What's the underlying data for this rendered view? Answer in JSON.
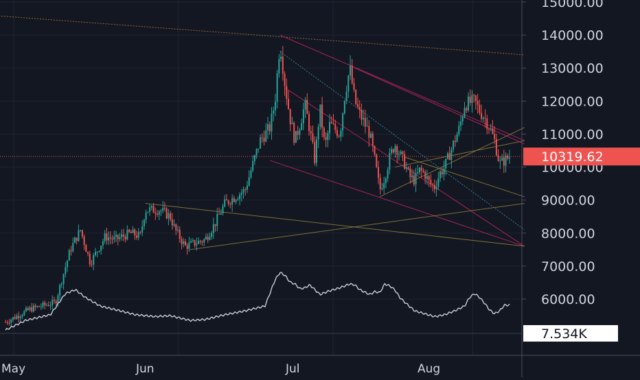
{
  "colors": {
    "background": "#131722",
    "grid": "#1f2433",
    "axis_text": "#d1d4dc",
    "bull": "#26a69a",
    "bear": "#ef5350",
    "price_line": "#ef5350",
    "volume_line": "#c9ccd3",
    "trend_pink": "#b7255c",
    "trend_orange": "#b0703a",
    "trend_olive": "#8a7a3a",
    "trend_teal": "#3f8fa0",
    "price_label_bg": "#ef5350",
    "volume_label_bg": "#ffffff"
  },
  "chart_data": {
    "type": "candlestick",
    "x": [
      "May",
      "Jun",
      "Jul",
      "Aug"
    ],
    "ylim": [
      5000,
      15000
    ],
    "y_ticks": [
      "6000.00",
      "7000.00",
      "8000.00",
      "9000.00",
      "10000.00",
      "11000.00",
      "12000.00",
      "13000.00",
      "14000.00",
      "15000.00"
    ],
    "last_price": "10319.62",
    "volume_label": "7.534K",
    "close_path": [
      [
        0,
        5300
      ],
      [
        5,
        5700
      ],
      [
        10,
        5900
      ],
      [
        13,
        7500
      ],
      [
        15,
        8100
      ],
      [
        17,
        7100
      ],
      [
        20,
        7900
      ],
      [
        22,
        7800
      ],
      [
        25,
        8000
      ],
      [
        27,
        7900
      ],
      [
        28,
        8700
      ],
      [
        31,
        8700
      ],
      [
        33,
        8500
      ],
      [
        34,
        8100
      ],
      [
        36,
        7600
      ],
      [
        38,
        7700
      ],
      [
        40,
        7800
      ],
      [
        42,
        8300
      ],
      [
        44,
        8900
      ],
      [
        46,
        9100
      ],
      [
        48,
        9300
      ],
      [
        51,
        10800
      ],
      [
        53,
        11200
      ],
      [
        54,
        12000
      ],
      [
        55,
        13800
      ],
      [
        56,
        12500
      ],
      [
        57,
        11500
      ],
      [
        58,
        10800
      ],
      [
        59,
        11300
      ],
      [
        60,
        11900
      ],
      [
        61,
        11100
      ],
      [
        62,
        10200
      ],
      [
        63,
        11800
      ],
      [
        64,
        10600
      ],
      [
        65,
        11300
      ],
      [
        67,
        11000
      ],
      [
        68,
        12200
      ],
      [
        69,
        13000
      ],
      [
        70,
        12000
      ],
      [
        71,
        11600
      ],
      [
        73,
        11000
      ],
      [
        74,
        10200
      ],
      [
        75,
        9300
      ],
      [
        76,
        9700
      ],
      [
        77,
        10300
      ],
      [
        78,
        10700
      ],
      [
        80,
        10100
      ],
      [
        81,
        9700
      ],
      [
        82,
        9600
      ],
      [
        83,
        9900
      ],
      [
        84,
        9800
      ],
      [
        85,
        9500
      ],
      [
        86,
        9400
      ],
      [
        87,
        9800
      ],
      [
        88,
        10000
      ],
      [
        89,
        10400
      ],
      [
        90,
        10800
      ],
      [
        91,
        11200
      ],
      [
        92,
        11900
      ],
      [
        94,
        12000
      ],
      [
        95,
        11700
      ],
      [
        96,
        11500
      ],
      [
        97,
        11200
      ],
      [
        98,
        10800
      ],
      [
        99,
        10100
      ],
      [
        100,
        10200
      ],
      [
        101,
        10319
      ]
    ],
    "volume_path": [
      [
        0,
        220
      ],
      [
        4,
        320
      ],
      [
        9,
        380
      ],
      [
        12,
        600
      ],
      [
        14,
        640
      ],
      [
        16,
        560
      ],
      [
        19,
        470
      ],
      [
        23,
        420
      ],
      [
        26,
        380
      ],
      [
        30,
        360
      ],
      [
        33,
        370
      ],
      [
        37,
        320
      ],
      [
        40,
        330
      ],
      [
        44,
        380
      ],
      [
        48,
        420
      ],
      [
        52,
        470
      ],
      [
        54,
        740
      ],
      [
        55,
        820
      ],
      [
        56,
        790
      ],
      [
        57,
        720
      ],
      [
        58,
        700
      ],
      [
        59,
        650
      ],
      [
        60,
        660
      ],
      [
        61,
        690
      ],
      [
        62,
        640
      ],
      [
        63,
        590
      ],
      [
        65,
        630
      ],
      [
        67,
        660
      ],
      [
        69,
        700
      ],
      [
        70,
        690
      ],
      [
        71,
        640
      ],
      [
        73,
        590
      ],
      [
        74,
        620
      ],
      [
        75,
        610
      ],
      [
        76,
        700
      ],
      [
        77,
        680
      ],
      [
        78,
        640
      ],
      [
        79,
        560
      ],
      [
        80,
        510
      ],
      [
        82,
        420
      ],
      [
        84,
        390
      ],
      [
        86,
        360
      ],
      [
        88,
        380
      ],
      [
        90,
        420
      ],
      [
        92,
        470
      ],
      [
        93,
        560
      ],
      [
        94,
        600
      ],
      [
        95,
        560
      ],
      [
        96,
        500
      ],
      [
        97,
        430
      ],
      [
        98,
        390
      ],
      [
        99,
        420
      ],
      [
        100,
        480
      ],
      [
        101,
        480
      ]
    ],
    "volume_range": [
      0,
      1000
    ],
    "trendlines": [
      {
        "color": "trend_orange",
        "from": [
          -3,
          14600
        ],
        "to": [
          104,
          13400
        ]
      },
      {
        "color": "trend_pink",
        "from": [
          55,
          14000
        ],
        "to": [
          104,
          10800
        ]
      },
      {
        "color": "trend_pink",
        "from": [
          56,
          12400
        ],
        "to": [
          104,
          7600
        ]
      },
      {
        "color": "trend_pink",
        "from": [
          53,
          10200
        ],
        "to": [
          104,
          7600
        ]
      },
      {
        "color": "trend_teal",
        "from": [
          55,
          13500
        ],
        "to": [
          104,
          8100
        ]
      },
      {
        "color": "trend_olive",
        "from": [
          28,
          8900
        ],
        "to": [
          104,
          7600
        ]
      },
      {
        "color": "trend_olive",
        "from": [
          37,
          7500
        ],
        "to": [
          104,
          8900
        ]
      },
      {
        "color": "trend_olive",
        "from": [
          75,
          9100
        ],
        "to": [
          104,
          11200
        ]
      },
      {
        "color": "trend_olive",
        "from": [
          78,
          10000
        ],
        "to": [
          104,
          10800
        ]
      },
      {
        "color": "trend_pink",
        "from": [
          70,
          13000
        ],
        "to": [
          104,
          10700
        ]
      },
      {
        "color": "trend_olive",
        "from": [
          80,
          10300
        ],
        "to": [
          104,
          9100
        ]
      }
    ]
  }
}
